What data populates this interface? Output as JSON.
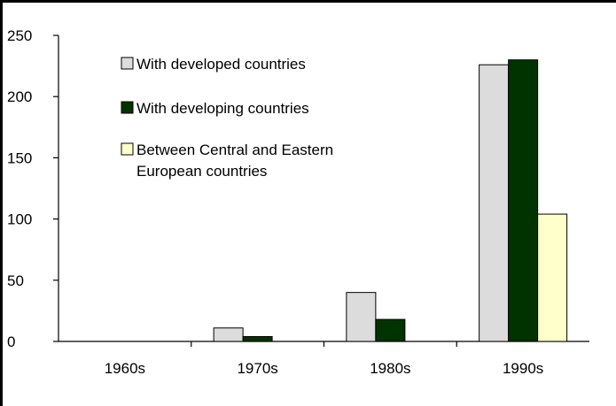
{
  "chart_data": {
    "type": "bar",
    "categories": [
      "1960s",
      "1970s",
      "1980s",
      "1990s"
    ],
    "series": [
      {
        "name": "With developed countries",
        "values": [
          0,
          11,
          40,
          226
        ],
        "color": "#DCDCDC"
      },
      {
        "name": "With developing countries",
        "values": [
          0,
          4,
          18,
          230
        ],
        "color": "#003300"
      },
      {
        "name": "Between Central and Eastern European countries",
        "values": [
          0,
          0,
          0,
          104
        ],
        "color": "#FFFFCC"
      }
    ],
    "legend_lines": [
      [
        "With developed countries"
      ],
      [
        "With developing countries"
      ],
      [
        "Between Central and Eastern",
        "European countries"
      ]
    ],
    "yticks": [
      0,
      50,
      100,
      150,
      200,
      250
    ],
    "ylim": [
      0,
      250
    ],
    "grid": false,
    "legend_position": "top-left"
  }
}
